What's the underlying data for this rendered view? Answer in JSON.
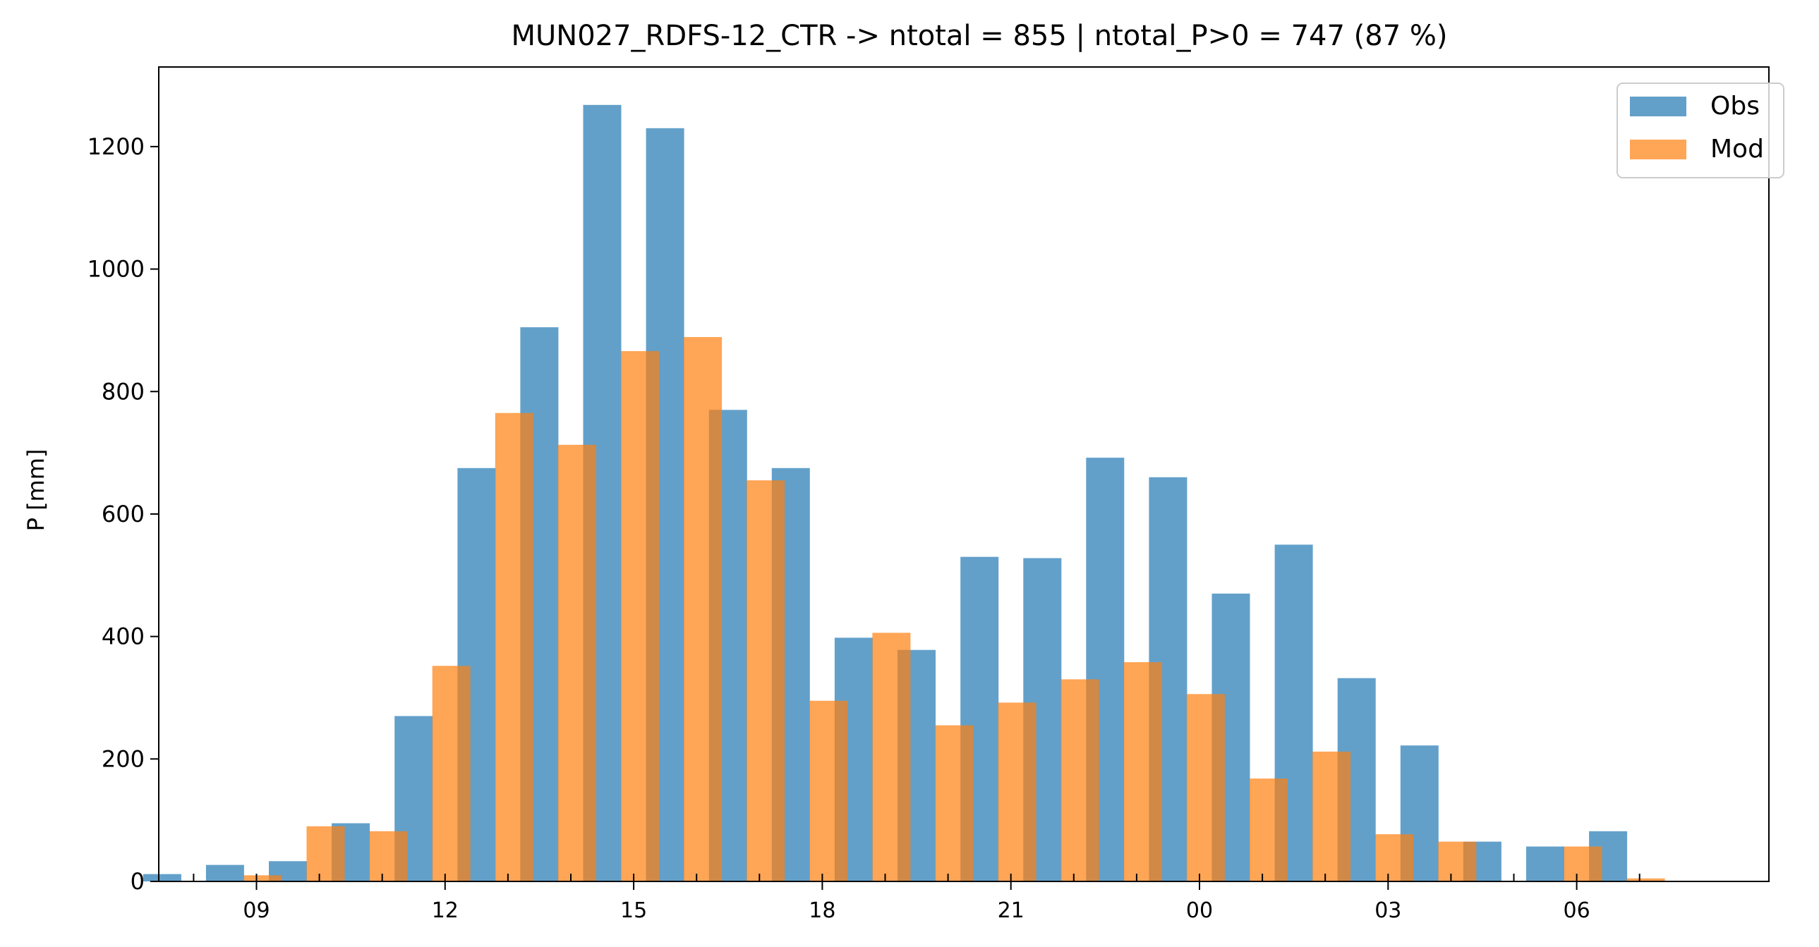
{
  "chart_data": {
    "type": "bar",
    "title": "MUN027_RDFS-12_CTR -> ntotal = 855 | ntotal_P>0 = 747 (87 %)",
    "xlabel": "",
    "ylabel": "P [mm]",
    "ylim": [
      0,
      1330
    ],
    "yticks": [
      0,
      200,
      400,
      600,
      800,
      1000,
      1200
    ],
    "x_hours": [
      8,
      9,
      10,
      11,
      12,
      13,
      14,
      15,
      16,
      17,
      18,
      19,
      20,
      21,
      22,
      23,
      24,
      25,
      26,
      27,
      28,
      29,
      30,
      31
    ],
    "xticks": [
      {
        "hour": 9,
        "label": "09"
      },
      {
        "hour": 12,
        "label": "12"
      },
      {
        "hour": 15,
        "label": "15"
      },
      {
        "hour": 18,
        "label": "18"
      },
      {
        "hour": 21,
        "label": "21"
      },
      {
        "hour": 24,
        "label": "00"
      },
      {
        "hour": 27,
        "label": "03"
      },
      {
        "hour": 30,
        "label": "06"
      }
    ],
    "legend_position": "top-right",
    "grid": false,
    "series": [
      {
        "name": "Obs",
        "color": "#1f77b4",
        "values": [
          12,
          27,
          33,
          95,
          270,
          675,
          905,
          1268,
          1230,
          770,
          675,
          398,
          378,
          530,
          528,
          692,
          660,
          470,
          550,
          332,
          222,
          65,
          57,
          82
        ]
      },
      {
        "name": "Mod",
        "color": "#ff7f0e",
        "values": [
          0,
          10,
          90,
          82,
          352,
          765,
          713,
          866,
          889,
          655,
          295,
          406,
          255,
          292,
          330,
          358,
          306,
          168,
          212,
          77,
          65,
          0,
          57,
          5
        ]
      }
    ]
  }
}
